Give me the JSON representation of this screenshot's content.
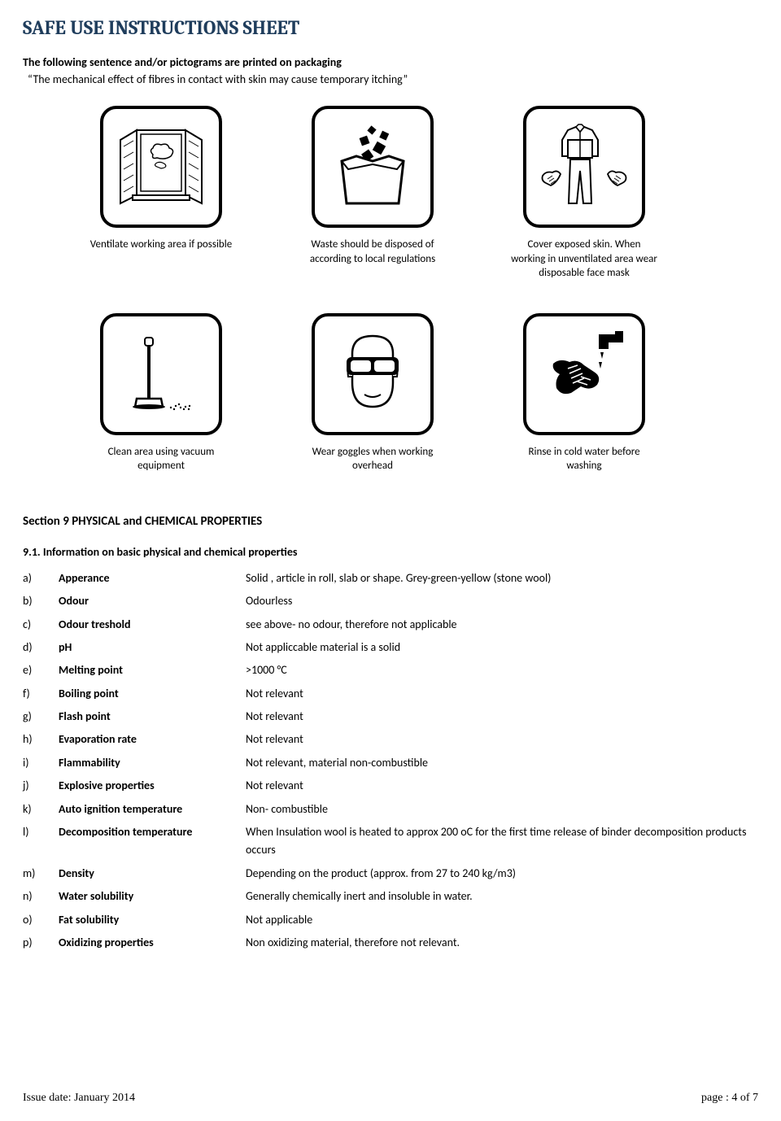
{
  "title": "SAFE USE INSTRUCTIONS SHEET",
  "intro": "The following sentence and/or pictograms are printed on packaging",
  "quote": "“The mechanical effect of fibres in contact with skin may cause temporary itching”",
  "pictograms": {
    "row1": [
      {
        "id": "ventilate-icon",
        "caption": "Ventilate working area if possible"
      },
      {
        "id": "waste-icon",
        "caption": "Waste should be disposed of according to local regulations"
      },
      {
        "id": "cover-icon",
        "caption": "Cover exposed skin. When working in unventilated area wear disposable face mask"
      }
    ],
    "row2": [
      {
        "id": "vacuum-icon",
        "caption": "Clean area using vacuum equipment"
      },
      {
        "id": "goggles-icon",
        "caption": "Wear goggles when working overhead"
      },
      {
        "id": "rinse-icon",
        "caption": "Rinse in cold water before washing"
      }
    ]
  },
  "section": {
    "heading": "Section 9  PHYSICAL and CHEMICAL PROPERTIES",
    "subheading": "9.1. Information on basic physical and chemical properties",
    "rows": [
      {
        "letter": "a)",
        "label": "Apperance",
        "value": "Solid , article in roll, slab or shape.  Grey-green-yellow (stone wool)"
      },
      {
        "letter": "b)",
        "label": "Odour",
        "value": "Odourless"
      },
      {
        "letter": "c)",
        "label": "Odour treshold",
        "value": "see above- no odour, therefore not applicable"
      },
      {
        "letter": "d)",
        "label": "pH",
        "value": "Not appliccable  material is a  solid"
      },
      {
        "letter": "e)",
        "label": "Melting point",
        "value": ">1000 °C"
      },
      {
        "letter": "f)",
        "label": "Boiling point",
        "value": "Not relevant"
      },
      {
        "letter": "g)",
        "label": "Flash point",
        "value": "Not relevant"
      },
      {
        "letter": "h)",
        "label": "Evaporation rate",
        "value": "Not relevant"
      },
      {
        "letter": "i)",
        "label": "Flammability",
        "value": "Not relevant, material non-combustible"
      },
      {
        "letter": "j)",
        "label": "Explosive properties",
        "value": "Not relevant"
      },
      {
        "letter": "k)",
        "label": "Auto ignition temperature",
        "value": "Non- combustible"
      },
      {
        "letter": "l)",
        "label": "Decomposition temperature",
        "value": "When Insulation wool is heated to approx 200 oC for the first time  release of binder decomposition products occurs"
      },
      {
        "letter": "m)",
        "label": "Density",
        "value": "Depending on the product (approx. from 27 to 240 kg/m3)"
      },
      {
        "letter": "n)",
        "label": "Water solubility",
        "value": "Generally chemically inert and insoluble in water."
      },
      {
        "letter": "o)",
        "label": "Fat solubility",
        "value": "Not applicable"
      },
      {
        "letter": "p)",
        "label": "Oxidizing properties",
        "value": "Non oxidizing material, therefore not relevant."
      }
    ]
  },
  "footer": {
    "issue": "Issue date: January 2014",
    "page": "page : 4 of 7"
  },
  "colors": {
    "title_color": "#1f3d5c",
    "text_color": "#000000",
    "border_color": "#000000",
    "background": "#ffffff"
  }
}
